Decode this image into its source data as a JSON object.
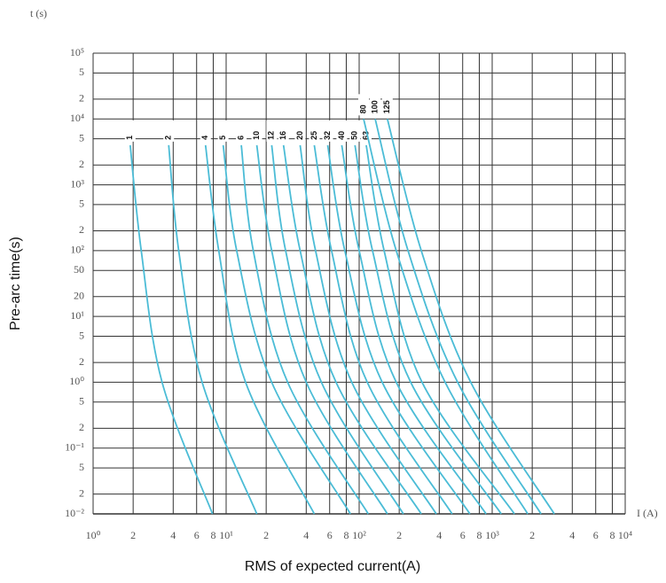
{
  "chart_data": {
    "type": "line",
    "y_label": "Pre-arc time(s)",
    "x_label": "RMS of expected current(A)",
    "y_unit": "t (s)",
    "x_unit": "I (A)",
    "log_x": true,
    "log_y": true,
    "grid": true,
    "color": "#4bbcd6",
    "xlim": [
      1,
      10000
    ],
    "ylim": [
      0.01,
      100000
    ],
    "xticks": [
      {
        "value": 1,
        "label": "10⁰"
      },
      2,
      4,
      6,
      8,
      {
        "value": 10,
        "label": "10¹"
      },
      {
        "value": 20,
        "label": "2"
      },
      {
        "value": 40,
        "label": "4"
      },
      {
        "value": 60,
        "label": "6"
      },
      {
        "value": 80,
        "label": "8"
      },
      {
        "value": 100,
        "label": "10²"
      },
      {
        "value": 200,
        "label": "2"
      },
      {
        "value": 400,
        "label": "4"
      },
      {
        "value": 600,
        "label": "6"
      },
      {
        "value": 800,
        "label": "8"
      },
      {
        "value": 1000,
        "label": "10³"
      },
      {
        "value": 2000,
        "label": "2"
      },
      {
        "value": 4000,
        "label": "4"
      },
      {
        "value": 6000,
        "label": "6"
      },
      {
        "value": 8000,
        "label": "8"
      },
      {
        "value": 10000,
        "label": "10⁴"
      }
    ],
    "yticks": [
      {
        "value": 100000,
        "label": "10⁵"
      },
      {
        "value": 50000,
        "label": "5"
      },
      {
        "value": 20000,
        "label": "2"
      },
      {
        "value": 10000,
        "label": "10⁴"
      },
      {
        "value": 5000,
        "label": "5"
      },
      {
        "value": 2000,
        "label": "2"
      },
      {
        "value": 1000,
        "label": "10³"
      },
      {
        "value": 500,
        "label": "5"
      },
      {
        "value": 200,
        "label": "2"
      },
      {
        "value": 100,
        "label": "10²"
      },
      50,
      20,
      {
        "value": 10,
        "label": "10¹"
      },
      5,
      2,
      {
        "value": 1,
        "label": "10⁰"
      },
      {
        "value": 0.5,
        "label": "5"
      },
      {
        "value": 0.2,
        "label": "2"
      },
      {
        "value": 0.1,
        "label": "10⁻¹"
      },
      {
        "value": 0.05,
        "label": "5"
      },
      {
        "value": 0.02,
        "label": "2"
      },
      {
        "value": 0.01,
        "label": "10⁻²"
      }
    ],
    "series": [
      {
        "name": "1",
        "x": [
          1.9,
          2.3,
          3.3,
          7.9
        ],
        "values": [
          4000,
          100,
          1,
          0.01
        ]
      },
      {
        "name": "2",
        "x": [
          3.7,
          4.4,
          6.6,
          17
        ],
        "values": [
          4000,
          100,
          1,
          0.01
        ]
      },
      {
        "name": "4",
        "x": [
          7,
          8.8,
          14,
          46
        ],
        "values": [
          4000,
          100,
          1,
          0.01
        ]
      },
      {
        "name": "5",
        "x": [
          9.5,
          12,
          22,
          86
        ],
        "values": [
          4000,
          100,
          1,
          0.01
        ]
      },
      {
        "name": "6",
        "x": [
          13,
          16,
          29,
          117
        ],
        "values": [
          4000,
          100,
          1,
          0.01
        ]
      },
      {
        "name": "10",
        "x": [
          17,
          22,
          40,
          163
        ],
        "values": [
          4000,
          100,
          1,
          0.01
        ]
      },
      {
        "name": "12",
        "x": [
          22,
          28,
          52,
          215
        ],
        "values": [
          4000,
          100,
          1,
          0.01
        ]
      },
      {
        "name": "16",
        "x": [
          27,
          36,
          67,
          293
        ],
        "values": [
          4000,
          100,
          1,
          0.01
        ]
      },
      {
        "name": "20",
        "x": [
          36,
          47,
          88,
          380
        ],
        "values": [
          4000,
          100,
          1,
          0.01
        ]
      },
      {
        "name": "25",
        "x": [
          46,
          62,
          115,
          500
        ],
        "values": [
          4000,
          100,
          1,
          0.01
        ]
      },
      {
        "name": "32",
        "x": [
          58,
          78,
          149,
          680
        ],
        "values": [
          4000,
          100,
          1,
          0.01
        ]
      },
      {
        "name": "40",
        "x": [
          74,
          100,
          190,
          900
        ],
        "values": [
          4000,
          100,
          1,
          0.01
        ]
      },
      {
        "name": "50",
        "x": [
          93,
          126,
          244,
          1170
        ],
        "values": [
          4000,
          100,
          1,
          0.01
        ]
      },
      {
        "name": "63",
        "x": [
          113,
          154,
          297,
          1470
        ],
        "values": [
          4000,
          100,
          1,
          0.01
        ]
      },
      {
        "name": "80",
        "x": [
          108,
          190,
          443,
          1850
        ],
        "values": [
          10000,
          100,
          1,
          0.01
        ]
      },
      {
        "name": "100",
        "x": [
          132,
          233,
          550,
          2330
        ],
        "values": [
          10000,
          100,
          1,
          0.01
        ]
      },
      {
        "name": "125",
        "x": [
          163,
          293,
          690,
          2930
        ],
        "values": [
          10000,
          100,
          1,
          0.01
        ]
      }
    ]
  }
}
